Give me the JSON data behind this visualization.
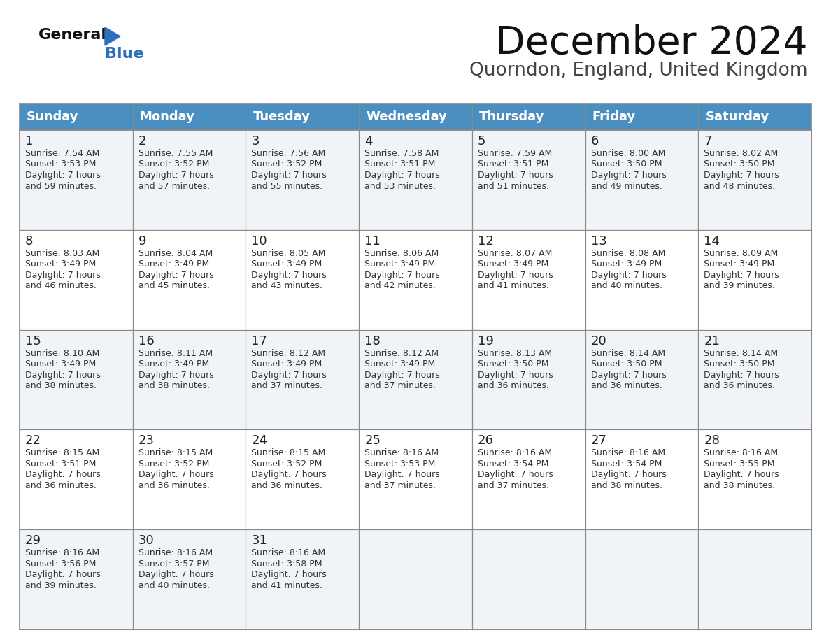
{
  "title": "December 2024",
  "subtitle": "Quorndon, England, United Kingdom",
  "days_of_week": [
    "Sunday",
    "Monday",
    "Tuesday",
    "Wednesday",
    "Thursday",
    "Friday",
    "Saturday"
  ],
  "header_bg": "#4A8FBF",
  "header_text": "#FFFFFF",
  "cell_bg_odd": "#F0F4F8",
  "cell_bg_even": "#FFFFFF",
  "cell_border": "#AAAAAA",
  "day_number_color": "#222222",
  "cell_text_color": "#333333",
  "title_color": "#111111",
  "subtitle_color": "#444444",
  "logo_general_color": "#111111",
  "logo_blue_color": "#2E6FBF",
  "calendar_data": [
    [
      {
        "day": 1,
        "sunrise": "7:54 AM",
        "sunset": "3:53 PM",
        "daylight_hours": 7,
        "daylight_minutes": 59
      },
      {
        "day": 2,
        "sunrise": "7:55 AM",
        "sunset": "3:52 PM",
        "daylight_hours": 7,
        "daylight_minutes": 57
      },
      {
        "day": 3,
        "sunrise": "7:56 AM",
        "sunset": "3:52 PM",
        "daylight_hours": 7,
        "daylight_minutes": 55
      },
      {
        "day": 4,
        "sunrise": "7:58 AM",
        "sunset": "3:51 PM",
        "daylight_hours": 7,
        "daylight_minutes": 53
      },
      {
        "day": 5,
        "sunrise": "7:59 AM",
        "sunset": "3:51 PM",
        "daylight_hours": 7,
        "daylight_minutes": 51
      },
      {
        "day": 6,
        "sunrise": "8:00 AM",
        "sunset": "3:50 PM",
        "daylight_hours": 7,
        "daylight_minutes": 49
      },
      {
        "day": 7,
        "sunrise": "8:02 AM",
        "sunset": "3:50 PM",
        "daylight_hours": 7,
        "daylight_minutes": 48
      }
    ],
    [
      {
        "day": 8,
        "sunrise": "8:03 AM",
        "sunset": "3:49 PM",
        "daylight_hours": 7,
        "daylight_minutes": 46
      },
      {
        "day": 9,
        "sunrise": "8:04 AM",
        "sunset": "3:49 PM",
        "daylight_hours": 7,
        "daylight_minutes": 45
      },
      {
        "day": 10,
        "sunrise": "8:05 AM",
        "sunset": "3:49 PM",
        "daylight_hours": 7,
        "daylight_minutes": 43
      },
      {
        "day": 11,
        "sunrise": "8:06 AM",
        "sunset": "3:49 PM",
        "daylight_hours": 7,
        "daylight_minutes": 42
      },
      {
        "day": 12,
        "sunrise": "8:07 AM",
        "sunset": "3:49 PM",
        "daylight_hours": 7,
        "daylight_minutes": 41
      },
      {
        "day": 13,
        "sunrise": "8:08 AM",
        "sunset": "3:49 PM",
        "daylight_hours": 7,
        "daylight_minutes": 40
      },
      {
        "day": 14,
        "sunrise": "8:09 AM",
        "sunset": "3:49 PM",
        "daylight_hours": 7,
        "daylight_minutes": 39
      }
    ],
    [
      {
        "day": 15,
        "sunrise": "8:10 AM",
        "sunset": "3:49 PM",
        "daylight_hours": 7,
        "daylight_minutes": 38
      },
      {
        "day": 16,
        "sunrise": "8:11 AM",
        "sunset": "3:49 PM",
        "daylight_hours": 7,
        "daylight_minutes": 38
      },
      {
        "day": 17,
        "sunrise": "8:12 AM",
        "sunset": "3:49 PM",
        "daylight_hours": 7,
        "daylight_minutes": 37
      },
      {
        "day": 18,
        "sunrise": "8:12 AM",
        "sunset": "3:49 PM",
        "daylight_hours": 7,
        "daylight_minutes": 37
      },
      {
        "day": 19,
        "sunrise": "8:13 AM",
        "sunset": "3:50 PM",
        "daylight_hours": 7,
        "daylight_minutes": 36
      },
      {
        "day": 20,
        "sunrise": "8:14 AM",
        "sunset": "3:50 PM",
        "daylight_hours": 7,
        "daylight_minutes": 36
      },
      {
        "day": 21,
        "sunrise": "8:14 AM",
        "sunset": "3:50 PM",
        "daylight_hours": 7,
        "daylight_minutes": 36
      }
    ],
    [
      {
        "day": 22,
        "sunrise": "8:15 AM",
        "sunset": "3:51 PM",
        "daylight_hours": 7,
        "daylight_minutes": 36
      },
      {
        "day": 23,
        "sunrise": "8:15 AM",
        "sunset": "3:52 PM",
        "daylight_hours": 7,
        "daylight_minutes": 36
      },
      {
        "day": 24,
        "sunrise": "8:15 AM",
        "sunset": "3:52 PM",
        "daylight_hours": 7,
        "daylight_minutes": 36
      },
      {
        "day": 25,
        "sunrise": "8:16 AM",
        "sunset": "3:53 PM",
        "daylight_hours": 7,
        "daylight_minutes": 37
      },
      {
        "day": 26,
        "sunrise": "8:16 AM",
        "sunset": "3:54 PM",
        "daylight_hours": 7,
        "daylight_minutes": 37
      },
      {
        "day": 27,
        "sunrise": "8:16 AM",
        "sunset": "3:54 PM",
        "daylight_hours": 7,
        "daylight_minutes": 38
      },
      {
        "day": 28,
        "sunrise": "8:16 AM",
        "sunset": "3:55 PM",
        "daylight_hours": 7,
        "daylight_minutes": 38
      }
    ],
    [
      {
        "day": 29,
        "sunrise": "8:16 AM",
        "sunset": "3:56 PM",
        "daylight_hours": 7,
        "daylight_minutes": 39
      },
      {
        "day": 30,
        "sunrise": "8:16 AM",
        "sunset": "3:57 PM",
        "daylight_hours": 7,
        "daylight_minutes": 40
      },
      {
        "day": 31,
        "sunrise": "8:16 AM",
        "sunset": "3:58 PM",
        "daylight_hours": 7,
        "daylight_minutes": 41
      },
      null,
      null,
      null,
      null
    ]
  ],
  "figsize": [
    11.88,
    9.18
  ],
  "dpi": 100
}
